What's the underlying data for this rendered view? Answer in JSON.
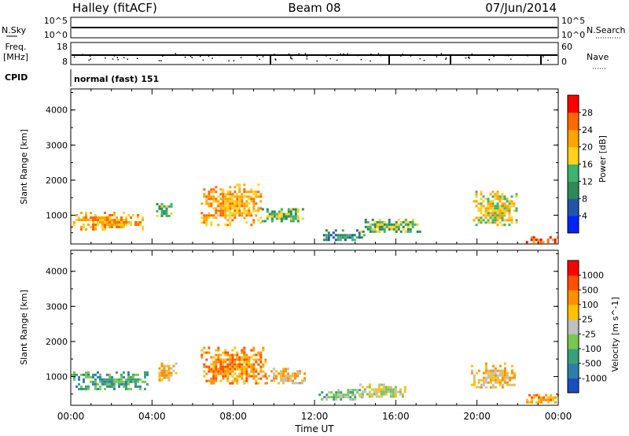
{
  "header": {
    "title": "Halley (fitACF)",
    "beam": "Beam 08",
    "date": "07/Jun/2014"
  },
  "panels": {
    "nsky": {
      "left_label": "N.Sky",
      "right_label": "N.Search",
      "left_ticks": [
        "10^5",
        "10^0"
      ],
      "right_ticks": [
        "10^5",
        "10^0"
      ]
    },
    "freq": {
      "left_label_line1": "Freq.",
      "left_label_line2": "[MHz]",
      "left_ticks": [
        "18",
        "8"
      ],
      "right_label": "Nave",
      "right_ticks": [
        "60",
        "0"
      ]
    },
    "cpid": {
      "left_label": "CPID",
      "mode": "normal (fast) 151"
    }
  },
  "chart_data": [
    {
      "type": "heatmap",
      "name": "power",
      "xlabel": "Time UT",
      "ylabel": "Slant Range [km]",
      "xlim_hours": [
        0,
        24
      ],
      "ylim": [
        180,
        4600
      ],
      "x_ticks": [
        "00:00",
        "04:00",
        "08:00",
        "12:00",
        "16:00",
        "20:00",
        "00:00"
      ],
      "y_ticks": [
        1000,
        2000,
        3000,
        4000
      ],
      "colorbar": {
        "label": "Power [dB]",
        "ticks": [
          4,
          8,
          12,
          16,
          20,
          24,
          28
        ],
        "colors": [
          "#0022ff",
          "#2255aa",
          "#2e8b57",
          "#3cb371",
          "#ffd21e",
          "#ffa500",
          "#ff6a00",
          "#ff0000"
        ]
      },
      "echo_regions": [
        {
          "t_start": 0.0,
          "t_end": 3.6,
          "r_min": 600,
          "r_max": 1100,
          "level": 5
        },
        {
          "t_start": 4.2,
          "t_end": 5.0,
          "r_min": 950,
          "r_max": 1350,
          "level": 3
        },
        {
          "t_start": 6.4,
          "t_end": 9.4,
          "r_min": 750,
          "r_max": 1900,
          "level": 5
        },
        {
          "t_start": 9.4,
          "t_end": 11.4,
          "r_min": 800,
          "r_max": 1200,
          "level": 3
        },
        {
          "t_start": 12.3,
          "t_end": 14.5,
          "r_min": 300,
          "r_max": 600,
          "level": 2
        },
        {
          "t_start": 14.0,
          "t_end": 17.2,
          "r_min": 500,
          "r_max": 900,
          "level": 3
        },
        {
          "t_start": 19.8,
          "t_end": 22.0,
          "r_min": 700,
          "r_max": 1700,
          "level": 4
        },
        {
          "t_start": 22.4,
          "t_end": 24.0,
          "r_min": 200,
          "r_max": 400,
          "level": 6
        }
      ]
    },
    {
      "type": "heatmap",
      "name": "velocity",
      "xlabel": "Time UT",
      "ylabel": "Slant Range [km]",
      "xlim_hours": [
        0,
        24
      ],
      "ylim": [
        180,
        4600
      ],
      "x_ticks": [
        "00:00",
        "04:00",
        "08:00",
        "12:00",
        "16:00",
        "20:00",
        "00:00"
      ],
      "y_ticks": [
        1000,
        2000,
        3000,
        4000
      ],
      "colorbar": {
        "label": "Velocity [m s^-1]",
        "ticks": [
          "1000",
          "500",
          "100",
          "25",
          "-25",
          "-100",
          "-500",
          "-1000"
        ],
        "colors": [
          "#1a4fbd",
          "#2e7fa8",
          "#3aa07a",
          "#78c850",
          "#c0c0c0",
          "#ffc000",
          "#ff9000",
          "#ff5000",
          "#ff0000"
        ]
      },
      "echo_regions": [
        {
          "t_start": 0.0,
          "t_end": 3.8,
          "r_min": 650,
          "r_max": 1150,
          "level": 2
        },
        {
          "t_start": 4.2,
          "t_end": 5.2,
          "r_min": 900,
          "r_max": 1400,
          "level": 5
        },
        {
          "t_start": 6.4,
          "t_end": 9.6,
          "r_min": 800,
          "r_max": 1850,
          "level": 6
        },
        {
          "t_start": 9.6,
          "t_end": 11.5,
          "r_min": 800,
          "r_max": 1250,
          "level": 5
        },
        {
          "t_start": 12.2,
          "t_end": 14.4,
          "r_min": 350,
          "r_max": 650,
          "level": 3
        },
        {
          "t_start": 14.2,
          "t_end": 16.5,
          "r_min": 450,
          "r_max": 800,
          "level": 4
        },
        {
          "t_start": 19.7,
          "t_end": 21.8,
          "r_min": 700,
          "r_max": 1400,
          "level": 5
        },
        {
          "t_start": 22.3,
          "t_end": 24.0,
          "r_min": 250,
          "r_max": 500,
          "level": 6
        }
      ]
    }
  ]
}
